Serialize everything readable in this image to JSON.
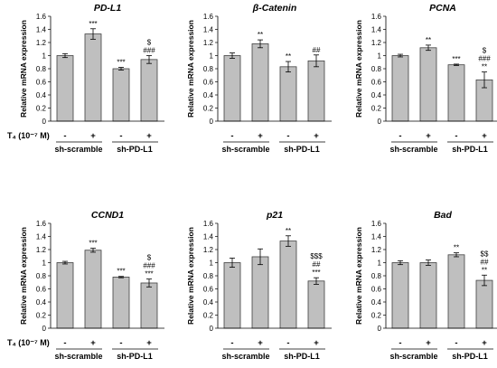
{
  "treatment_label": "T₄ (10⁻⁷ M)",
  "treatment_signs": [
    "-",
    "+",
    "-",
    "+"
  ],
  "groups": [
    "sh-scramble",
    "sh-PD-L1"
  ],
  "chart_data": [
    {
      "type": "bar",
      "title": "PD-L1",
      "ylabel": "Relative mRNA expression",
      "ylim": [
        0,
        1.6
      ],
      "yticks": [
        "0",
        "0.2",
        "0.4",
        "0.6",
        "0.8",
        "1",
        "1.2",
        "1.4",
        "1.6"
      ],
      "values": [
        1.0,
        1.33,
        0.8,
        0.94
      ],
      "errors": [
        0.03,
        0.08,
        0.02,
        0.06
      ],
      "annotations": [
        [],
        [
          "***"
        ],
        [
          "***"
        ],
        [
          "$",
          "###"
        ]
      ]
    },
    {
      "type": "bar",
      "title": "β-Catenin",
      "ylabel": "Relative mRNA expression",
      "ylim": [
        0,
        1.6
      ],
      "yticks": [
        "0",
        "0.2",
        "0.4",
        "0.6",
        "0.8",
        "1",
        "1.2",
        "1.4",
        "1.6"
      ],
      "values": [
        1.0,
        1.18,
        0.83,
        0.92
      ],
      "errors": [
        0.04,
        0.06,
        0.08,
        0.09
      ],
      "annotations": [
        [],
        [
          "**"
        ],
        [
          "**"
        ],
        [
          "##"
        ]
      ]
    },
    {
      "type": "bar",
      "title": "PCNA",
      "ylabel": "Relative mRNA expression",
      "ylim": [
        0,
        1.6
      ],
      "yticks": [
        "0",
        "0.2",
        "0.4",
        "0.6",
        "0.8",
        "1",
        "1.2",
        "1.4",
        "1.6"
      ],
      "values": [
        1.0,
        1.12,
        0.86,
        0.63
      ],
      "errors": [
        0.02,
        0.04,
        0.01,
        0.12
      ],
      "annotations": [
        [],
        [
          "**"
        ],
        [
          "***"
        ],
        [
          "$",
          "###",
          "**"
        ]
      ]
    },
    {
      "type": "bar",
      "title": "CCND1",
      "ylabel": "Relative mRNA expression",
      "ylim": [
        0,
        1.6
      ],
      "yticks": [
        "0",
        "0.2",
        "0.4",
        "0.6",
        "0.8",
        "1",
        "1.2",
        "1.4",
        "1.6"
      ],
      "values": [
        1.0,
        1.19,
        0.78,
        0.69
      ],
      "errors": [
        0.02,
        0.03,
        0.01,
        0.06
      ],
      "annotations": [
        [],
        [
          "***"
        ],
        [
          "***"
        ],
        [
          "$",
          "###",
          "***"
        ]
      ]
    },
    {
      "type": "bar",
      "title": "p21",
      "ylabel": "Relative mRNA expression",
      "ylim": [
        0,
        1.6
      ],
      "yticks": [
        "0",
        "0.2",
        "0.4",
        "0.6",
        "0.8",
        "1",
        "1.2",
        "1.4",
        "1.6"
      ],
      "values": [
        1.0,
        1.09,
        1.33,
        0.72
      ],
      "errors": [
        0.07,
        0.12,
        0.08,
        0.05
      ],
      "annotations": [
        [],
        [],
        [
          "**"
        ],
        [
          "$$$",
          "##",
          "***"
        ]
      ]
    },
    {
      "type": "bar",
      "title": "Bad",
      "ylabel": "Relative mRNA expression",
      "ylim": [
        0,
        1.6
      ],
      "yticks": [
        "0",
        "0.2",
        "0.4",
        "0.6",
        "0.8",
        "1",
        "1.2",
        "1.4",
        "1.6"
      ],
      "values": [
        1.0,
        1.0,
        1.12,
        0.73
      ],
      "errors": [
        0.03,
        0.04,
        0.03,
        0.08
      ],
      "annotations": [
        [],
        [],
        [
          "**"
        ],
        [
          "$$",
          "##",
          "**"
        ]
      ]
    }
  ]
}
